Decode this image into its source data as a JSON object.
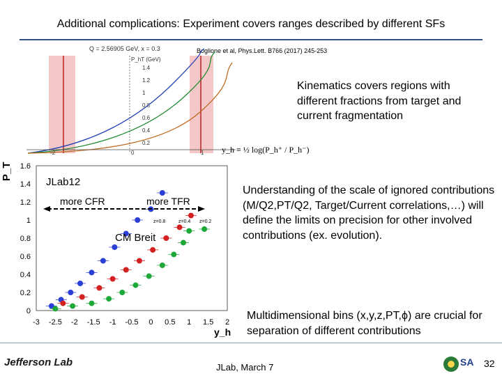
{
  "slide": {
    "title": "Additional complications: Experiment covers ranges described by different SFs",
    "citation": "Boglione et al, Phys.Lett. B766 (2017) 245-253",
    "top_plot": {
      "header": "Q = 2.56905 GeV, x = 0.3",
      "y_label": "P_hT (GeV)",
      "y_ticks": [
        "1.4",
        "1.2",
        "1",
        "0.8",
        "0.6",
        "0.4",
        "0.2"
      ],
      "x_ticks": [
        "-2",
        "0",
        "1"
      ],
      "formula": "y_h ≡ ½ log(P_h⁺ / P_h⁻)"
    },
    "kinematics_text": "Kinematics covers regions with different fractions from target and current fragmentation",
    "understanding_text": "Understanding of the scale of ignored contributions (M/Q2,PT/Q2, Target/Current correlations,…) will define the limits on precision for other involved contributions (ex. evolution).",
    "multidim_text": "Multidimensional bins (x,y,z,PT,ϕ) are crucial for separation of different contributions",
    "footer": {
      "logo": "Jefferson Lab",
      "date": "JLab,  March 7",
      "page": "32",
      "isa": "SA"
    }
  },
  "chart_data": {
    "type": "scatter",
    "xlabel": "y_h",
    "ylabel": "P_T",
    "xlim": [
      -3,
      2
    ],
    "ylim": [
      0,
      1.6
    ],
    "x_ticks": [
      "-3",
      "-2.5",
      "-2",
      "-1.5",
      "-1",
      "-0.5",
      "0",
      "0.5",
      "1",
      "1.5",
      "2"
    ],
    "y_ticks": [
      "1.6",
      "1.4",
      "1.2",
      "1",
      "0.8",
      "0.6",
      "0.4",
      "0.2",
      "0"
    ],
    "annotations": {
      "experiment": "JLab12",
      "cfr": "more CFR",
      "tfr": "more TFR",
      "frame": "CM  Breit",
      "z_labels": [
        "z=0.8",
        "z=0.4",
        "z=0.2"
      ]
    },
    "series": [
      {
        "name": "z=0.8",
        "color": "#2a3fd6",
        "points": [
          [
            -2.6,
            0.05
          ],
          [
            -2.35,
            0.12
          ],
          [
            -2.1,
            0.2
          ],
          [
            -1.85,
            0.3
          ],
          [
            -1.55,
            0.42
          ],
          [
            -1.25,
            0.55
          ],
          [
            -0.95,
            0.7
          ],
          [
            -0.65,
            0.85
          ],
          [
            -0.35,
            1.0
          ],
          [
            0.0,
            1.12
          ],
          [
            0.3,
            1.3
          ]
        ]
      },
      {
        "name": "z=0.4",
        "color": "#1fa83a",
        "points": [
          [
            -2.5,
            0.02
          ],
          [
            -2.05,
            0.05
          ],
          [
            -1.55,
            0.08
          ],
          [
            -1.1,
            0.13
          ],
          [
            -0.75,
            0.2
          ],
          [
            -0.4,
            0.28
          ],
          [
            -0.05,
            0.38
          ],
          [
            0.3,
            0.5
          ],
          [
            0.6,
            0.62
          ],
          [
            0.85,
            0.75
          ],
          [
            1.0,
            0.88
          ],
          [
            1.4,
            0.9
          ]
        ]
      },
      {
        "name": "z=0.2",
        "color": "#d42020",
        "points": [
          [
            -2.3,
            0.08
          ],
          [
            -1.8,
            0.15
          ],
          [
            -1.35,
            0.25
          ],
          [
            -1.0,
            0.35
          ],
          [
            -0.65,
            0.45
          ],
          [
            -0.3,
            0.55
          ],
          [
            0.05,
            0.67
          ],
          [
            0.4,
            0.8
          ],
          [
            0.75,
            0.92
          ],
          [
            1.05,
            1.05
          ]
        ]
      }
    ]
  }
}
